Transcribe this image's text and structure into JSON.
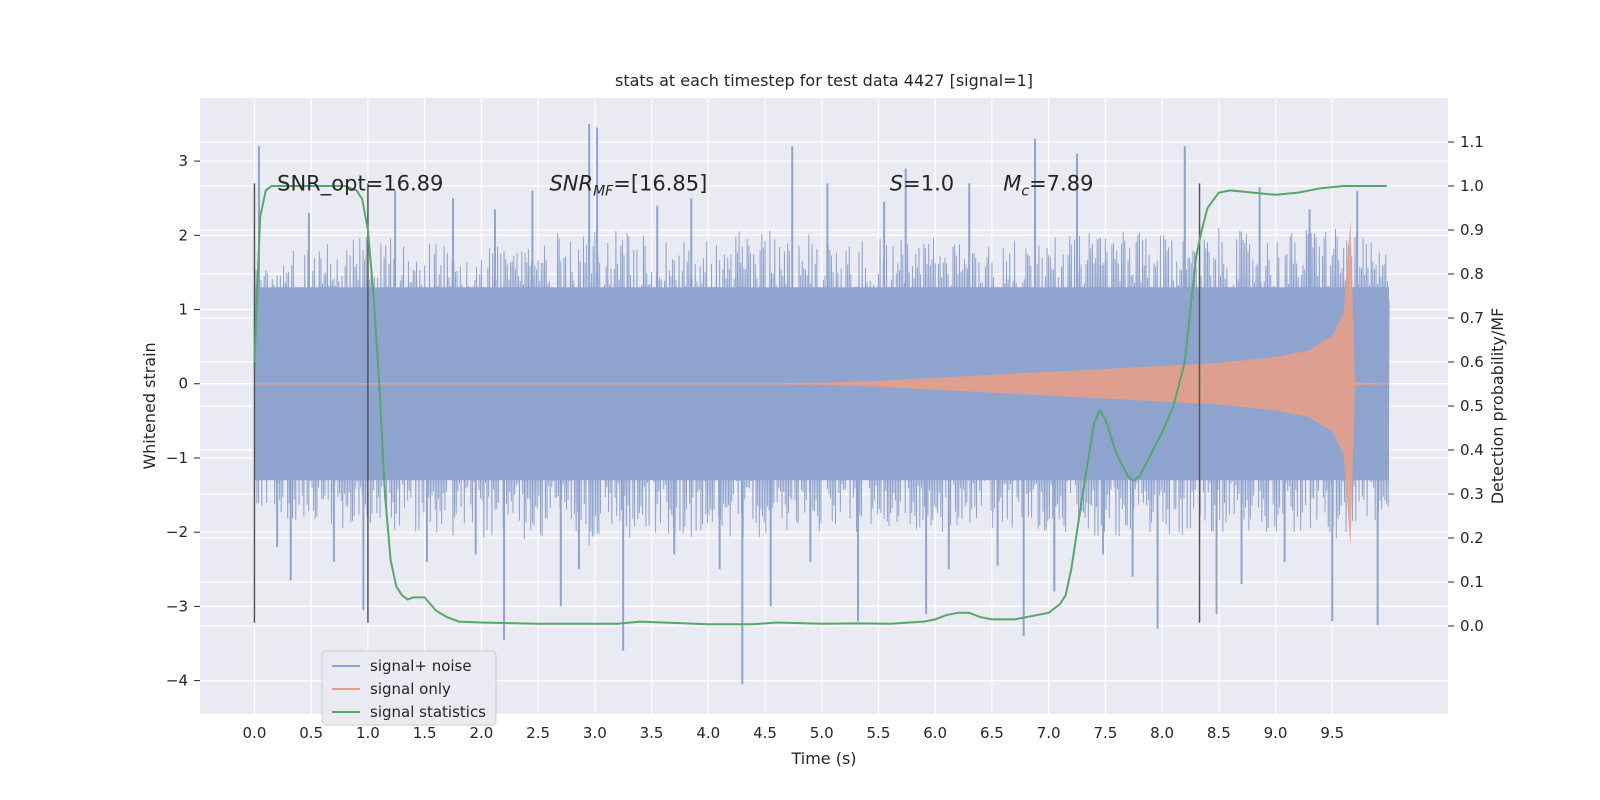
{
  "chart_data": {
    "type": "line",
    "title": "stats at each timestep for test data 4427 [signal=1]",
    "xlabel": "Time (s)",
    "ylabel": "Whitened strain",
    "y2label": "Detection probability/MF",
    "xlim": [
      -0.48,
      10.52
    ],
    "ylim": [
      -4.45,
      3.85
    ],
    "y2lim": [
      -0.2,
      1.2
    ],
    "x_ticks": [
      0.0,
      0.5,
      1.0,
      1.5,
      2.0,
      2.5,
      3.0,
      3.5,
      4.0,
      4.5,
      5.0,
      5.5,
      6.0,
      6.5,
      7.0,
      7.5,
      8.0,
      8.5,
      9.0,
      9.5
    ],
    "x_tick_labels": [
      "0.0",
      "0.5",
      "1.0",
      "1.5",
      "2.0",
      "2.5",
      "3.0",
      "3.5",
      "4.0",
      "4.5",
      "5.0",
      "5.5",
      "6.0",
      "6.5",
      "7.0",
      "7.5",
      "8.0",
      "8.5",
      "9.0",
      "9.5"
    ],
    "y_ticks": [
      -4,
      -3,
      -2,
      -1,
      0,
      1,
      2,
      3
    ],
    "y_tick_labels": [
      "−4",
      "−3",
      "−2",
      "−1",
      "0",
      "1",
      "2",
      "3"
    ],
    "y2_ticks": [
      0.0,
      0.1,
      0.2,
      0.3,
      0.4,
      0.5,
      0.6,
      0.7,
      0.8,
      0.9,
      1.0,
      1.1
    ],
    "y2_tick_labels": [
      "0.0",
      "0.1",
      "0.2",
      "0.3",
      "0.4",
      "0.5",
      "0.6",
      "0.7",
      "0.8",
      "0.9",
      "1.0",
      "1.1"
    ],
    "grid": true,
    "legend_position": "lower-left",
    "annotations": [
      {
        "x": 0.2,
        "y": 2.7,
        "prefix": "SNR_opt",
        "suffix": "=16.89"
      },
      {
        "x": 2.6,
        "y": 2.7,
        "prefix": "SNR",
        "sub": "MF",
        "suffix": "=[16.85]"
      },
      {
        "x": 5.6,
        "y": 2.7,
        "prefix": "S",
        "suffix": "=1.0"
      },
      {
        "x": 6.6,
        "y": 2.7,
        "prefix": "M",
        "sub": "c",
        "suffix": "=7.89"
      }
    ],
    "vertical_lines": {
      "x": [
        0.0,
        1.0,
        8.33
      ],
      "y_range": [
        -3.22,
        2.7
      ],
      "color": "#555555"
    },
    "noise_envelope": {
      "x": [
        0.0,
        0.5,
        1.0,
        1.5,
        2.0,
        2.5,
        3.0,
        3.5,
        4.0,
        4.5,
        5.0,
        5.5,
        6.0,
        6.5,
        7.0,
        7.5,
        8.0,
        8.5,
        9.0,
        9.5,
        10.0
      ],
      "upper": [
        1.6,
        1.9,
        2.0,
        1.9,
        1.9,
        2.0,
        2.1,
        2.0,
        2.0,
        2.1,
        2.0,
        2.0,
        2.0,
        1.9,
        2.0,
        2.1,
        2.0,
        2.1,
        2.0,
        2.2,
        1.8
      ],
      "lower": [
        -1.7,
        -1.9,
        -2.0,
        -2.0,
        -2.1,
        -2.1,
        -2.2,
        -2.0,
        -2.1,
        -2.1,
        -2.0,
        -2.0,
        -2.0,
        -2.0,
        -2.0,
        -2.1,
        -2.1,
        -2.0,
        -2.0,
        -2.1,
        -1.9
      ]
    },
    "noise_spikes": [
      {
        "x": 0.04,
        "v": 3.2
      },
      {
        "x": 0.2,
        "v": -2.2
      },
      {
        "x": 0.32,
        "v": -2.65
      },
      {
        "x": 0.48,
        "v": 2.3
      },
      {
        "x": 0.7,
        "v": -2.4
      },
      {
        "x": 0.96,
        "v": -3.05
      },
      {
        "x": 1.24,
        "v": 2.6
      },
      {
        "x": 1.52,
        "v": -2.4
      },
      {
        "x": 1.75,
        "v": 2.5
      },
      {
        "x": 1.95,
        "v": -2.3
      },
      {
        "x": 2.12,
        "v": 2.35
      },
      {
        "x": 2.2,
        "v": -3.45
      },
      {
        "x": 2.45,
        "v": 2.6
      },
      {
        "x": 2.7,
        "v": -3.0
      },
      {
        "x": 2.86,
        "v": -2.5
      },
      {
        "x": 2.95,
        "v": 3.5
      },
      {
        "x": 3.02,
        "v": 3.45
      },
      {
        "x": 3.25,
        "v": -3.6
      },
      {
        "x": 3.55,
        "v": 2.4
      },
      {
        "x": 3.7,
        "v": -2.3
      },
      {
        "x": 3.85,
        "v": 2.5
      },
      {
        "x": 4.1,
        "v": -2.5
      },
      {
        "x": 4.3,
        "v": -4.05
      },
      {
        "x": 4.55,
        "v": -3.0
      },
      {
        "x": 4.74,
        "v": 3.2
      },
      {
        "x": 4.9,
        "v": -2.4
      },
      {
        "x": 5.05,
        "v": 2.7
      },
      {
        "x": 5.32,
        "v": -3.2
      },
      {
        "x": 5.55,
        "v": 2.45
      },
      {
        "x": 5.74,
        "v": 2.9
      },
      {
        "x": 5.92,
        "v": -3.1
      },
      {
        "x": 6.12,
        "v": -2.5
      },
      {
        "x": 6.3,
        "v": 2.7
      },
      {
        "x": 6.55,
        "v": -2.45
      },
      {
        "x": 6.78,
        "v": -3.4
      },
      {
        "x": 6.88,
        "v": 3.3
      },
      {
        "x": 7.05,
        "v": -2.8
      },
      {
        "x": 7.25,
        "v": 3.1
      },
      {
        "x": 7.48,
        "v": -2.3
      },
      {
        "x": 7.74,
        "v": -2.6
      },
      {
        "x": 7.96,
        "v": -3.3
      },
      {
        "x": 8.2,
        "v": 3.2
      },
      {
        "x": 8.48,
        "v": -3.1
      },
      {
        "x": 8.7,
        "v": -2.7
      },
      {
        "x": 8.86,
        "v": 2.65
      },
      {
        "x": 9.08,
        "v": -2.4
      },
      {
        "x": 9.3,
        "v": 2.35
      },
      {
        "x": 9.5,
        "v": -3.2
      },
      {
        "x": 9.72,
        "v": 2.6
      },
      {
        "x": 9.9,
        "v": -3.25
      }
    ],
    "signal_envelope": {
      "x": [
        0.0,
        4.0,
        5.0,
        5.5,
        6.0,
        6.5,
        7.0,
        7.5,
        8.0,
        8.5,
        9.0,
        9.3,
        9.5,
        9.6,
        9.66,
        9.7,
        10.0
      ],
      "amplitude": [
        0.0,
        0.0,
        0.015,
        0.04,
        0.08,
        0.12,
        0.16,
        0.2,
        0.24,
        0.28,
        0.36,
        0.45,
        0.65,
        0.95,
        2.2,
        0.02,
        0.0
      ]
    },
    "series": [
      {
        "name": "signal+ noise",
        "color": "#8ea4cf"
      },
      {
        "name": "signal only",
        "color": "#e6a088"
      },
      {
        "name": "signal statistics",
        "color": "#55a868",
        "axis": "right",
        "x": [
          0.0,
          0.05,
          0.1,
          0.15,
          0.2,
          0.3,
          0.4,
          0.5,
          0.6,
          0.7,
          0.8,
          0.9,
          0.95,
          1.0,
          1.05,
          1.1,
          1.15,
          1.2,
          1.25,
          1.3,
          1.35,
          1.4,
          1.5,
          1.55,
          1.6,
          1.7,
          1.8,
          2.0,
          2.5,
          3.0,
          3.2,
          3.4,
          3.6,
          4.0,
          4.4,
          4.6,
          5.0,
          5.3,
          5.6,
          5.9,
          6.0,
          6.1,
          6.2,
          6.3,
          6.4,
          6.5,
          6.7,
          6.9,
          7.0,
          7.1,
          7.15,
          7.2,
          7.3,
          7.4,
          7.45,
          7.5,
          7.6,
          7.7,
          7.75,
          7.8,
          7.9,
          8.0,
          8.05,
          8.1,
          8.2,
          8.3,
          8.35,
          8.4,
          8.5,
          8.6,
          8.8,
          9.0,
          9.2,
          9.4,
          9.6,
          9.8,
          9.98
        ],
        "values": [
          0.6,
          0.93,
          0.99,
          1.0,
          1.0,
          1.0,
          1.0,
          1.0,
          1.0,
          1.0,
          1.0,
          0.99,
          0.97,
          0.9,
          0.75,
          0.55,
          0.3,
          0.15,
          0.09,
          0.07,
          0.06,
          0.065,
          0.065,
          0.05,
          0.035,
          0.02,
          0.01,
          0.008,
          0.005,
          0.005,
          0.005,
          0.01,
          0.008,
          0.004,
          0.004,
          0.008,
          0.005,
          0.006,
          0.005,
          0.01,
          0.015,
          0.025,
          0.03,
          0.03,
          0.02,
          0.015,
          0.015,
          0.025,
          0.03,
          0.05,
          0.07,
          0.13,
          0.3,
          0.46,
          0.49,
          0.47,
          0.39,
          0.34,
          0.33,
          0.34,
          0.39,
          0.44,
          0.47,
          0.5,
          0.6,
          0.84,
          0.9,
          0.95,
          0.985,
          0.99,
          0.985,
          0.98,
          0.985,
          0.995,
          1.0,
          1.0,
          1.0
        ]
      }
    ]
  }
}
